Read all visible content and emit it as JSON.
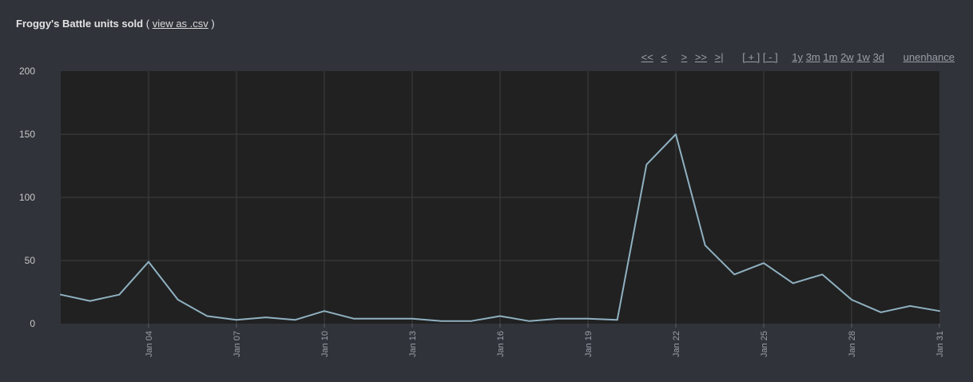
{
  "header": {
    "title": "Froggy's Battle units sold",
    "paren_open": "(",
    "csv_link": "view as .csv",
    "paren_close": ")"
  },
  "controls": {
    "first": "<<",
    "prev": "<",
    "next": ">",
    "next_page": ">>",
    "last": ">|",
    "zoom_in": "[ + ]",
    "zoom_out": "[ - ]",
    "range_1y": "1y",
    "range_3m": "3m",
    "range_1m": "1m",
    "range_2w": "2w",
    "range_1w": "1w",
    "range_3d": "3d",
    "unenhance": "unenhance"
  },
  "colors": {
    "background": "#30333a",
    "plot_background": "#212121",
    "line": "#8fb1c1",
    "grid": "#3e3e3e"
  },
  "chart_data": {
    "type": "line",
    "title": "Froggy's Battle units sold",
    "xlabel": "",
    "ylabel": "",
    "ylim": [
      0,
      200
    ],
    "xlim": [
      "Jan 01",
      "Jan 31"
    ],
    "grid": true,
    "y_ticks": [
      "0",
      "50",
      "100",
      "150",
      "200"
    ],
    "x_ticks": [
      "Jan 04",
      "Jan 07",
      "Jan 10",
      "Jan 13",
      "Jan 16",
      "Jan 19",
      "Jan 22",
      "Jan 25",
      "Jan 28",
      "Jan 31"
    ],
    "x": [
      "Jan 01",
      "Jan 02",
      "Jan 03",
      "Jan 04",
      "Jan 05",
      "Jan 06",
      "Jan 07",
      "Jan 08",
      "Jan 09",
      "Jan 10",
      "Jan 11",
      "Jan 12",
      "Jan 13",
      "Jan 14",
      "Jan 15",
      "Jan 16",
      "Jan 17",
      "Jan 18",
      "Jan 19",
      "Jan 20",
      "Jan 21",
      "Jan 22",
      "Jan 23",
      "Jan 24",
      "Jan 25",
      "Jan 26",
      "Jan 27",
      "Jan 28",
      "Jan 29",
      "Jan 30",
      "Jan 31"
    ],
    "series": [
      {
        "values": [
          23,
          18,
          23,
          49,
          19,
          6,
          3,
          5,
          3,
          10,
          4,
          4,
          4,
          2,
          2,
          6,
          2,
          4,
          4,
          3,
          126,
          150,
          62,
          39,
          48,
          32,
          39,
          19,
          9,
          14,
          10
        ]
      }
    ]
  }
}
